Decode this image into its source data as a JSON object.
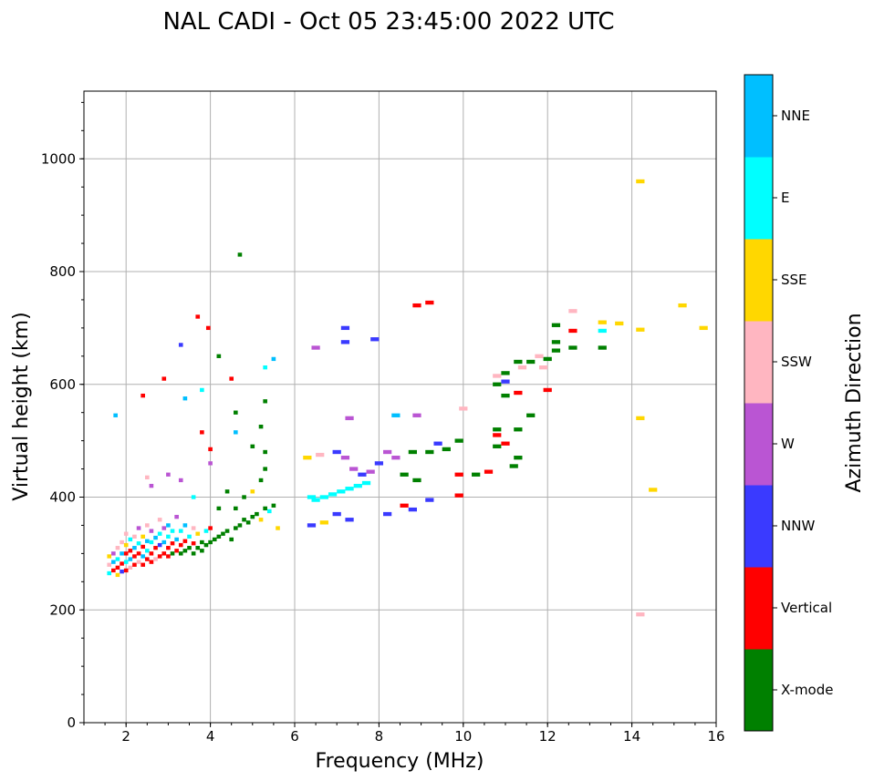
{
  "chart_data": {
    "type": "scatter",
    "title": "NAL CADI - Oct 05 23:45:00 2022 UTC",
    "xlabel": "Frequency (MHz)",
    "ylabel": "Virtual height (km)",
    "xlim": [
      1,
      16
    ],
    "ylim": [
      0,
      1120
    ],
    "xticks": [
      2,
      4,
      6,
      8,
      10,
      12,
      14,
      16
    ],
    "yticks": [
      0,
      200,
      400,
      600,
      800,
      1000
    ],
    "grid": true,
    "colorbar": {
      "label": "Azimuth Direction",
      "categories": [
        {
          "name": "X-mode",
          "color": "#008000"
        },
        {
          "name": "Vertical",
          "color": "#ff0000"
        },
        {
          "name": "NNW",
          "color": "#3a3aff"
        },
        {
          "name": "W",
          "color": "#ba55d3"
        },
        {
          "name": "SSW",
          "color": "#ffb6c1"
        },
        {
          "name": "SSE",
          "color": "#ffd700"
        },
        {
          "name": "E",
          "color": "#00ffff"
        },
        {
          "name": "NNE",
          "color": "#00bfff"
        }
      ]
    },
    "points_format": [
      "frequency_mhz",
      "virtual_height_km",
      "category_index"
    ],
    "points": [
      [
        1.6,
        265,
        6
      ],
      [
        1.6,
        280,
        4
      ],
      [
        1.6,
        295,
        5
      ],
      [
        1.7,
        270,
        1
      ],
      [
        1.7,
        285,
        7
      ],
      [
        1.7,
        300,
        3
      ],
      [
        1.8,
        262,
        5
      ],
      [
        1.8,
        275,
        1
      ],
      [
        1.8,
        290,
        6
      ],
      [
        1.8,
        310,
        4
      ],
      [
        1.9,
        268,
        2
      ],
      [
        1.9,
        282,
        1
      ],
      [
        1.9,
        300,
        7
      ],
      [
        1.9,
        320,
        4
      ],
      [
        2.0,
        270,
        1
      ],
      [
        2.0,
        285,
        6
      ],
      [
        2.0,
        300,
        1
      ],
      [
        2.0,
        315,
        5
      ],
      [
        2.0,
        335,
        4
      ],
      [
        2.1,
        275,
        4
      ],
      [
        2.1,
        290,
        7
      ],
      [
        2.1,
        305,
        1
      ],
      [
        2.1,
        325,
        6
      ],
      [
        2.2,
        280,
        1
      ],
      [
        2.2,
        295,
        1
      ],
      [
        2.2,
        310,
        7
      ],
      [
        2.2,
        330,
        4
      ],
      [
        2.3,
        285,
        4
      ],
      [
        2.3,
        300,
        1
      ],
      [
        2.3,
        318,
        6
      ],
      [
        2.3,
        345,
        3
      ],
      [
        2.4,
        280,
        1
      ],
      [
        2.4,
        295,
        7
      ],
      [
        2.4,
        312,
        1
      ],
      [
        2.4,
        330,
        5
      ],
      [
        2.5,
        290,
        1
      ],
      [
        2.5,
        305,
        6
      ],
      [
        2.5,
        322,
        7
      ],
      [
        2.5,
        350,
        4
      ],
      [
        2.6,
        285,
        1
      ],
      [
        2.6,
        300,
        1
      ],
      [
        2.6,
        320,
        6
      ],
      [
        2.6,
        340,
        3
      ],
      [
        2.7,
        290,
        4
      ],
      [
        2.7,
        310,
        1
      ],
      [
        2.7,
        328,
        7
      ],
      [
        2.8,
        295,
        1
      ],
      [
        2.8,
        315,
        2
      ],
      [
        2.8,
        335,
        6
      ],
      [
        2.8,
        360,
        4
      ],
      [
        2.9,
        300,
        1
      ],
      [
        2.9,
        320,
        7
      ],
      [
        2.9,
        345,
        3
      ],
      [
        3.0,
        295,
        1
      ],
      [
        3.0,
        310,
        1
      ],
      [
        3.0,
        330,
        6
      ],
      [
        3.0,
        350,
        7
      ],
      [
        3.1,
        300,
        0
      ],
      [
        3.1,
        318,
        1
      ],
      [
        3.1,
        340,
        6
      ],
      [
        3.2,
        305,
        1
      ],
      [
        3.2,
        325,
        7
      ],
      [
        3.2,
        365,
        3
      ],
      [
        3.3,
        300,
        0
      ],
      [
        3.3,
        315,
        1
      ],
      [
        3.3,
        340,
        6
      ],
      [
        3.4,
        305,
        0
      ],
      [
        3.4,
        322,
        1
      ],
      [
        3.4,
        350,
        7
      ],
      [
        3.5,
        310,
        0
      ],
      [
        3.5,
        330,
        6
      ],
      [
        3.6,
        300,
        0
      ],
      [
        3.6,
        318,
        1
      ],
      [
        3.6,
        345,
        4
      ],
      [
        3.7,
        310,
        0
      ],
      [
        3.7,
        335,
        5
      ],
      [
        3.8,
        305,
        0
      ],
      [
        3.8,
        320,
        0
      ],
      [
        3.9,
        315,
        0
      ],
      [
        3.9,
        340,
        6
      ],
      [
        4.0,
        320,
        0
      ],
      [
        4.0,
        345,
        1
      ],
      [
        4.1,
        325,
        0
      ],
      [
        4.2,
        330,
        0
      ],
      [
        4.3,
        335,
        0
      ],
      [
        4.4,
        340,
        0
      ],
      [
        4.5,
        325,
        0
      ],
      [
        4.6,
        345,
        0
      ],
      [
        4.7,
        350,
        0
      ],
      [
        4.8,
        360,
        0
      ],
      [
        4.9,
        355,
        0
      ],
      [
        5.0,
        365,
        0
      ],
      [
        5.1,
        370,
        0
      ],
      [
        5.2,
        360,
        5
      ],
      [
        5.3,
        380,
        0
      ],
      [
        5.4,
        375,
        6
      ],
      [
        5.5,
        385,
        0
      ],
      [
        5.6,
        345,
        5
      ],
      [
        4.2,
        380,
        0
      ],
      [
        4.4,
        410,
        0
      ],
      [
        4.6,
        380,
        0
      ],
      [
        4.8,
        400,
        0
      ],
      [
        5.0,
        410,
        5
      ],
      [
        5.2,
        430,
        0
      ],
      [
        5.3,
        450,
        0
      ],
      [
        5.3,
        480,
        0
      ],
      [
        5.3,
        570,
        0
      ],
      [
        5.2,
        525,
        0
      ],
      [
        5.0,
        490,
        0
      ],
      [
        4.6,
        550,
        0
      ],
      [
        4.2,
        650,
        0
      ],
      [
        4.7,
        830,
        0
      ],
      [
        3.6,
        400,
        6
      ],
      [
        3.3,
        430,
        3
      ],
      [
        3.0,
        440,
        3
      ],
      [
        2.6,
        420,
        3
      ],
      [
        2.5,
        435,
        4
      ],
      [
        2.4,
        580,
        1
      ],
      [
        2.9,
        610,
        1
      ],
      [
        3.3,
        670,
        2
      ],
      [
        3.7,
        720,
        1
      ],
      [
        3.95,
        700,
        1
      ],
      [
        3.8,
        590,
        6
      ],
      [
        4.5,
        610,
        1
      ],
      [
        5.3,
        630,
        6
      ],
      [
        5.5,
        645,
        7
      ],
      [
        1.75,
        545,
        7
      ],
      [
        4.0,
        485,
        1
      ],
      [
        4.0,
        460,
        3
      ],
      [
        3.8,
        515,
        1
      ],
      [
        4.6,
        515,
        7
      ],
      [
        3.4,
        575,
        7
      ],
      [
        6.3,
        470,
        5
      ],
      [
        6.4,
        400,
        6
      ],
      [
        6.5,
        395,
        6
      ],
      [
        6.7,
        400,
        6
      ],
      [
        6.9,
        405,
        6
      ],
      [
        7.1,
        410,
        6
      ],
      [
        7.3,
        415,
        6
      ],
      [
        7.5,
        420,
        6
      ],
      [
        7.7,
        425,
        6
      ],
      [
        6.4,
        350,
        2
      ],
      [
        6.7,
        355,
        5
      ],
      [
        7.0,
        370,
        2
      ],
      [
        7.3,
        360,
        2
      ],
      [
        6.6,
        475,
        4
      ],
      [
        7.0,
        480,
        2
      ],
      [
        7.2,
        470,
        3
      ],
      [
        7.4,
        450,
        3
      ],
      [
        7.6,
        440,
        2
      ],
      [
        7.8,
        445,
        3
      ],
      [
        8.0,
        460,
        2
      ],
      [
        8.2,
        480,
        3
      ],
      [
        8.4,
        470,
        3
      ],
      [
        8.6,
        440,
        0
      ],
      [
        8.8,
        480,
        0
      ],
      [
        8.9,
        545,
        3
      ],
      [
        8.9,
        430,
        0
      ],
      [
        9.2,
        480,
        0
      ],
      [
        9.4,
        495,
        2
      ],
      [
        9.6,
        485,
        0
      ],
      [
        9.9,
        500,
        0
      ],
      [
        9.9,
        440,
        1
      ],
      [
        8.2,
        370,
        2
      ],
      [
        8.6,
        385,
        1
      ],
      [
        8.8,
        378,
        2
      ],
      [
        9.2,
        395,
        2
      ],
      [
        9.9,
        403,
        1
      ],
      [
        7.2,
        700,
        2
      ],
      [
        7.2,
        675,
        2
      ],
      [
        7.9,
        680,
        2
      ],
      [
        6.5,
        665,
        3
      ],
      [
        7.3,
        540,
        3
      ],
      [
        8.9,
        740,
        1
      ],
      [
        9.2,
        745,
        1
      ],
      [
        8.4,
        545,
        7
      ],
      [
        10.3,
        440,
        0
      ],
      [
        10.6,
        445,
        1
      ],
      [
        10.8,
        490,
        0
      ],
      [
        10.8,
        520,
        0
      ],
      [
        10.8,
        510,
        1
      ],
      [
        11.0,
        495,
        1
      ],
      [
        11.2,
        455,
        0
      ],
      [
        11.3,
        520,
        0
      ],
      [
        11.3,
        470,
        0
      ],
      [
        11.6,
        545,
        0
      ],
      [
        11.0,
        580,
        0
      ],
      [
        11.3,
        585,
        1
      ],
      [
        10.8,
        600,
        0
      ],
      [
        10.8,
        615,
        4
      ],
      [
        11.0,
        620,
        0
      ],
      [
        11.3,
        640,
        0
      ],
      [
        11.6,
        640,
        0
      ],
      [
        12.0,
        645,
        0
      ],
      [
        12.0,
        590,
        1
      ],
      [
        12.2,
        660,
        0
      ],
      [
        12.2,
        675,
        0
      ],
      [
        12.2,
        705,
        0
      ],
      [
        12.6,
        730,
        4
      ],
      [
        12.6,
        695,
        1
      ],
      [
        12.6,
        665,
        0
      ],
      [
        11.9,
        630,
        4
      ],
      [
        11.8,
        650,
        4
      ],
      [
        13.3,
        710,
        5
      ],
      [
        13.3,
        695,
        6
      ],
      [
        13.3,
        665,
        0
      ],
      [
        13.7,
        708,
        5
      ],
      [
        14.2,
        697,
        5
      ],
      [
        14.2,
        960,
        5
      ],
      [
        14.2,
        540,
        5
      ],
      [
        14.5,
        413,
        5
      ],
      [
        14.2,
        192,
        4
      ],
      [
        15.2,
        740,
        5
      ],
      [
        15.7,
        700,
        5
      ],
      [
        11.0,
        605,
        2
      ],
      [
        11.4,
        630,
        4
      ],
      [
        10.0,
        557,
        4
      ]
    ]
  }
}
